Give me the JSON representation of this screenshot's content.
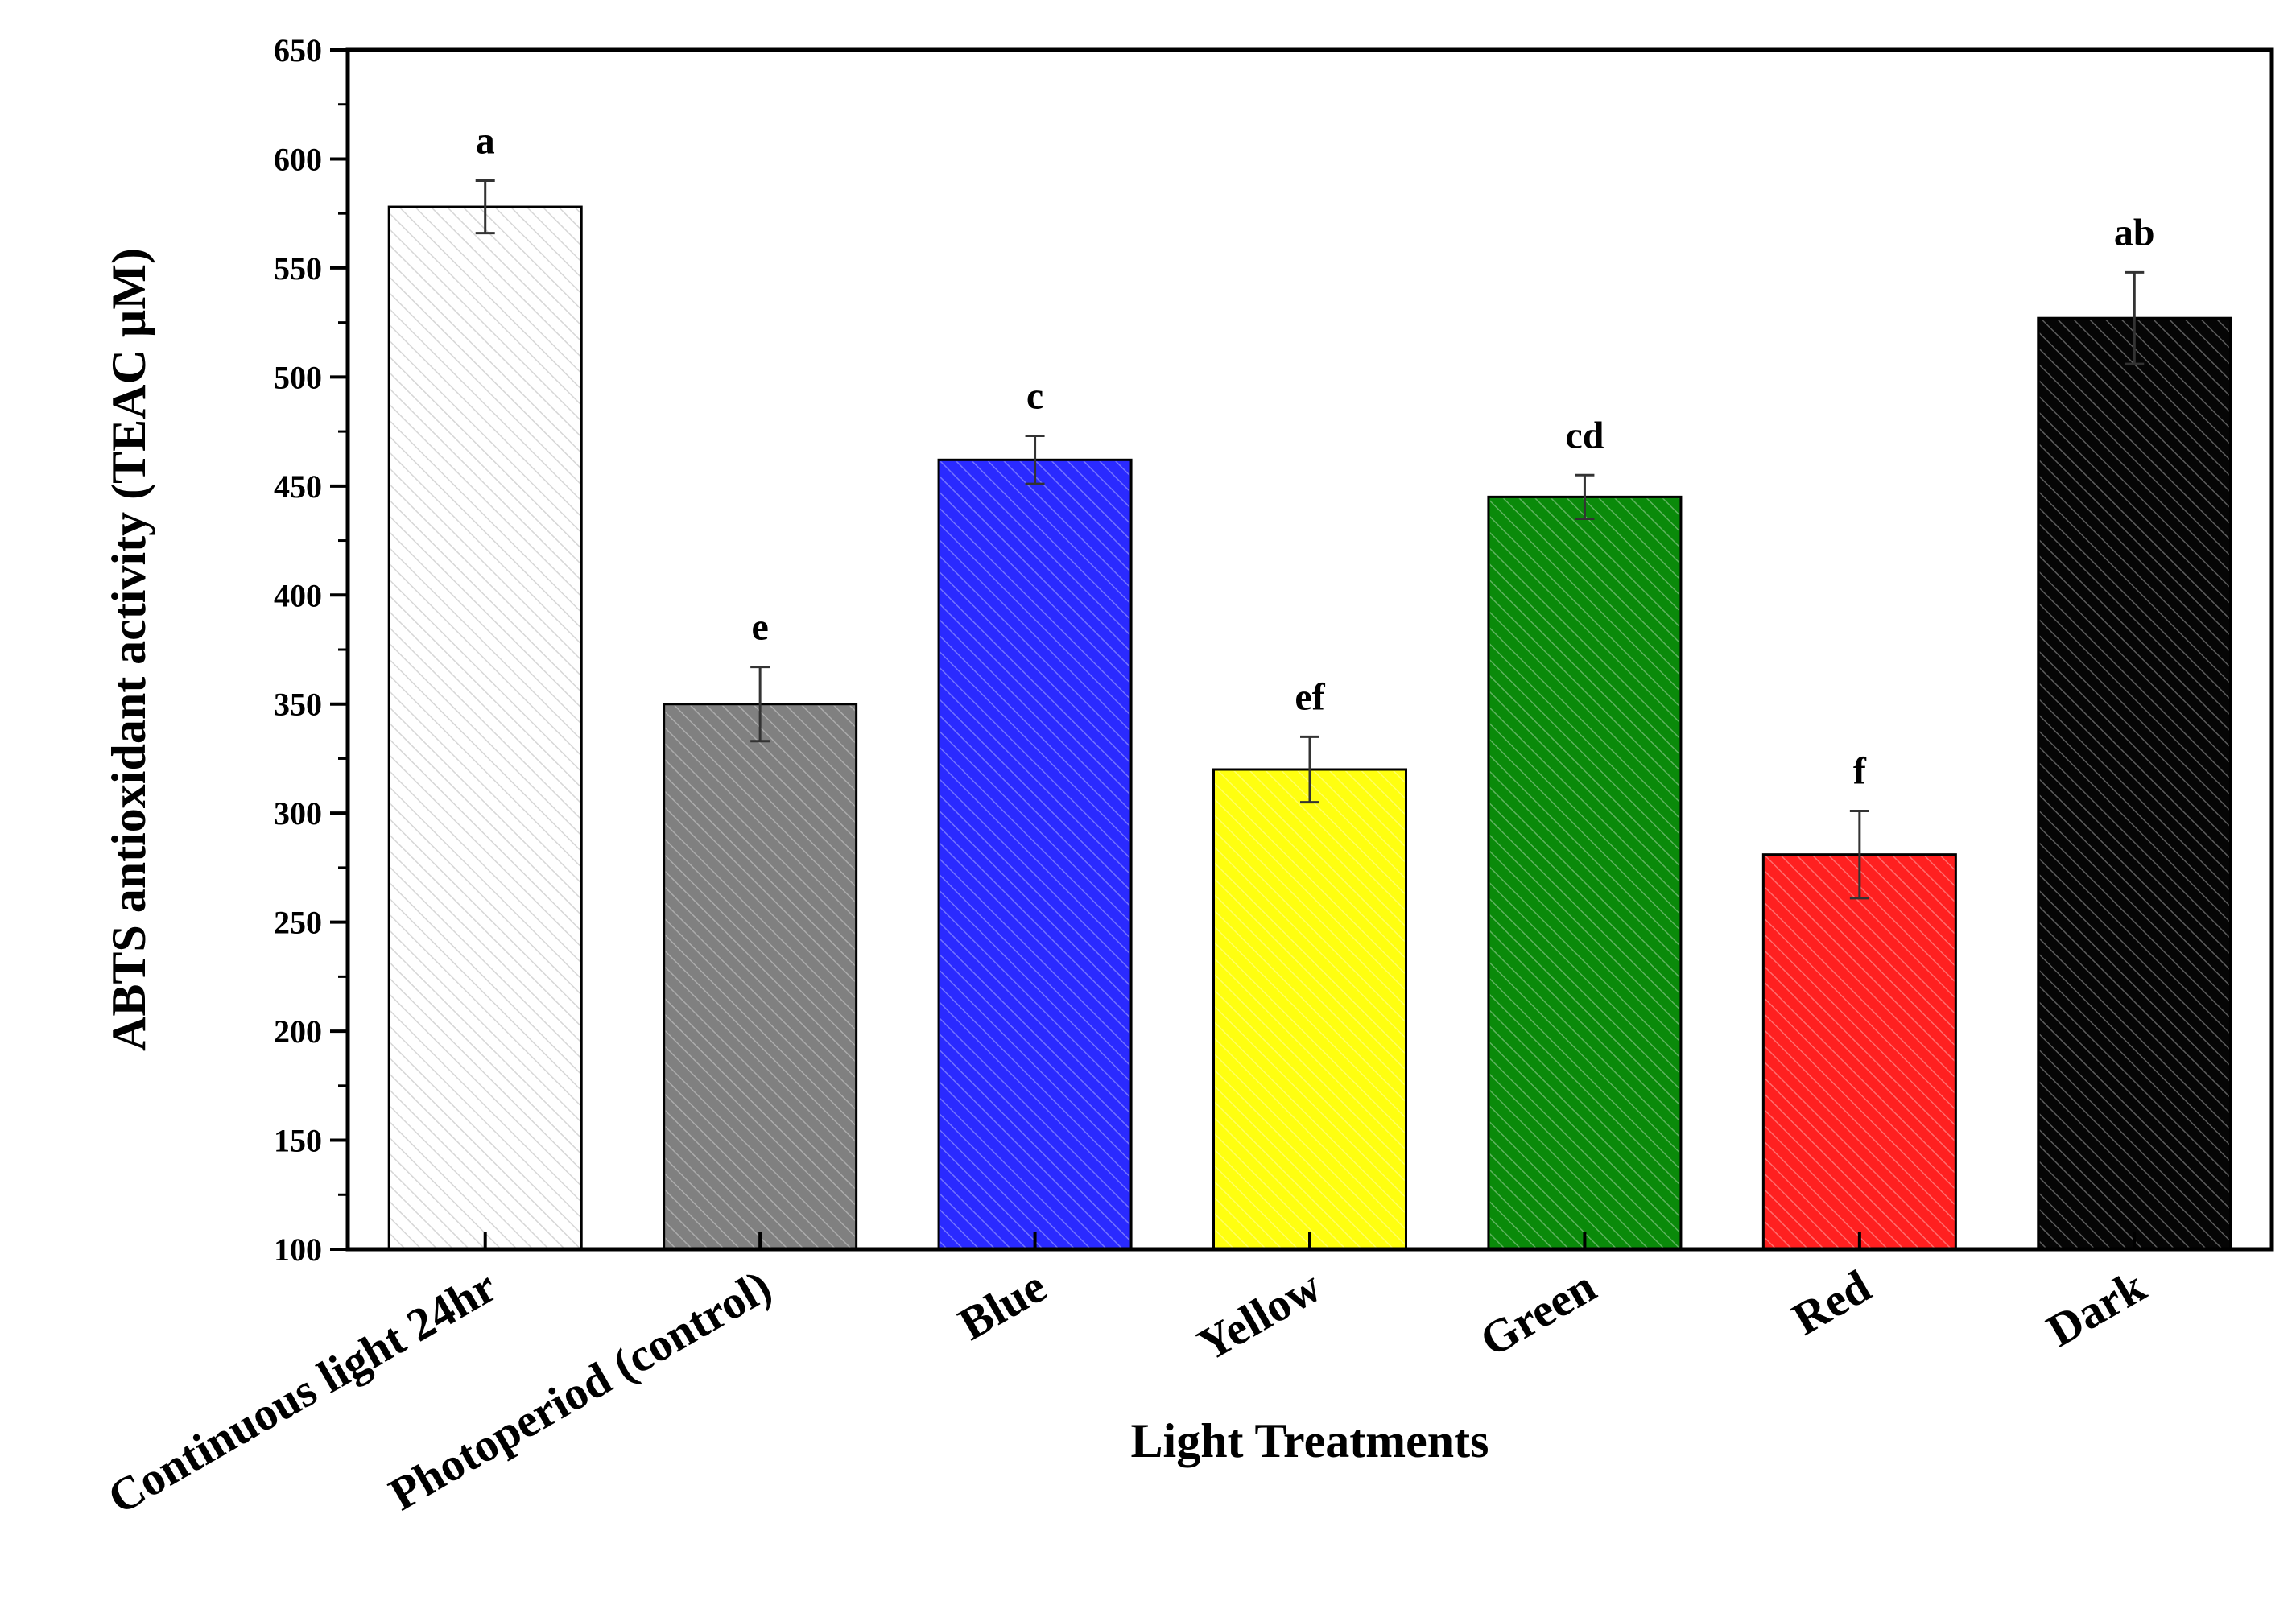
{
  "chart_data": {
    "type": "bar",
    "title": "",
    "xlabel": "Light Treatments",
    "ylabel": "ABTS antioxidant activity (TEAC µM)",
    "ylim": [
      100,
      650
    ],
    "yticks": [
      100,
      150,
      200,
      250,
      300,
      350,
      400,
      450,
      500,
      550,
      600,
      650
    ],
    "grid": false,
    "categories": [
      "Continuous light 24hr",
      "Photoperiod (control)",
      "Blue",
      "Yellow",
      "Green",
      "Red",
      "Dark"
    ],
    "values": [
      578,
      350,
      462,
      320,
      445,
      281,
      527
    ],
    "errors": [
      12,
      17,
      11,
      15,
      10,
      20,
      21
    ],
    "significance": [
      "a",
      "e",
      "c",
      "ef",
      "cd",
      "f",
      "ab"
    ],
    "colors": [
      "#ffffff",
      "#808080",
      "#2a2aff",
      "#ffff10",
      "#0a8a0a",
      "#ff2020",
      "#050505"
    ],
    "hatched": true
  }
}
